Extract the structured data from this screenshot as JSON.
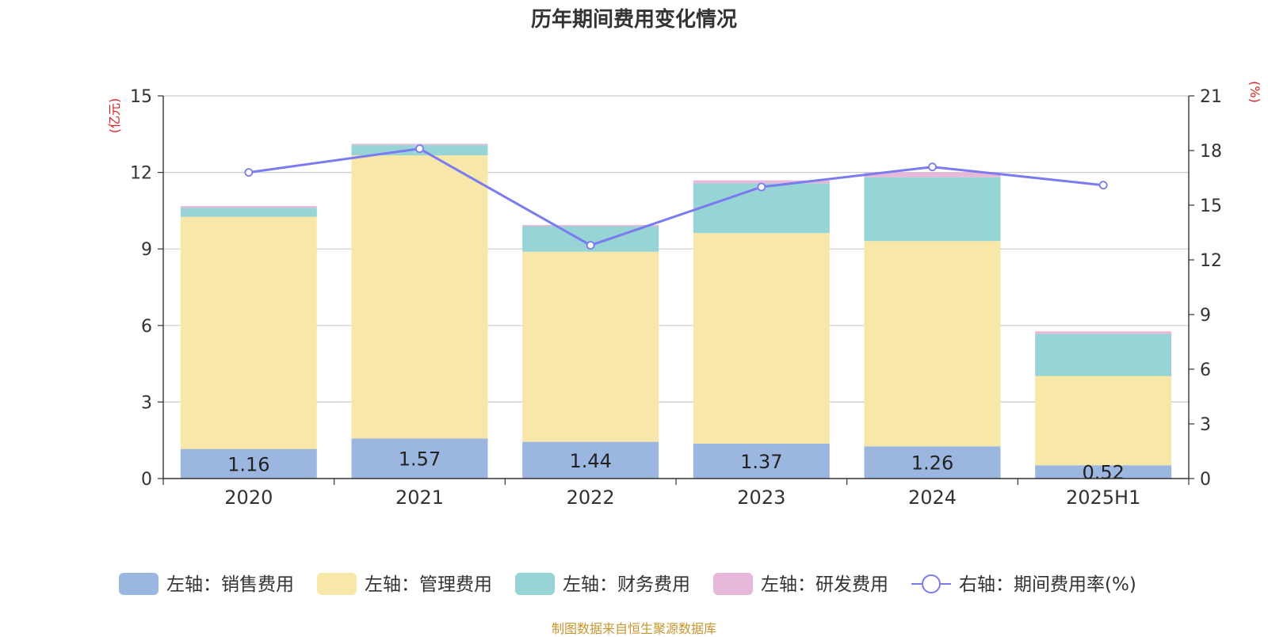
{
  "chart_data": {
    "type": "bar",
    "title": "历年期间费用变化情况",
    "categories": [
      "2020",
      "2021",
      "2022",
      "2023",
      "2024",
      "2025H1"
    ],
    "left_axis": {
      "unit_label": "(亿元)",
      "ylim": [
        0,
        15
      ],
      "ticks": [
        "0",
        "3",
        "6",
        "9",
        "12",
        "15"
      ]
    },
    "right_axis": {
      "unit_label": "(%)",
      "ylim": [
        0,
        21
      ],
      "ticks": [
        "0",
        "3",
        "6",
        "9",
        "12",
        "15",
        "18",
        "21"
      ]
    },
    "stacked_series": [
      {
        "name": "左轴：销售费用",
        "axis": "left",
        "color": "#9bb7e0",
        "values": [
          1.16,
          1.57,
          1.44,
          1.37,
          1.26,
          0.52
        ]
      },
      {
        "name": "左轴：管理费用",
        "axis": "left",
        "color": "#f7e7a8",
        "values": [
          9.1,
          11.1,
          7.45,
          8.25,
          8.05,
          3.5
        ]
      },
      {
        "name": "左轴：财务费用",
        "axis": "left",
        "color": "#96d4d6",
        "values": [
          0.35,
          0.4,
          1.0,
          1.95,
          2.5,
          1.65
        ]
      },
      {
        "name": "左轴：研发费用",
        "axis": "left",
        "color": "#e6b8d9",
        "values": [
          0.07,
          0.05,
          0.05,
          0.12,
          0.2,
          0.1
        ]
      }
    ],
    "bar_labels": [
      "1.16",
      "1.57",
      "1.44",
      "1.37",
      "1.26",
      "0.52"
    ],
    "line_series": {
      "name": "右轴：期间费用率(%)",
      "axis": "right",
      "color": "#7b7bf0",
      "values": [
        16.8,
        18.1,
        12.8,
        16.0,
        17.1,
        16.1
      ]
    },
    "grid": true,
    "legend_position": "bottom"
  },
  "source": "制图数据来自恒生聚源数据库"
}
